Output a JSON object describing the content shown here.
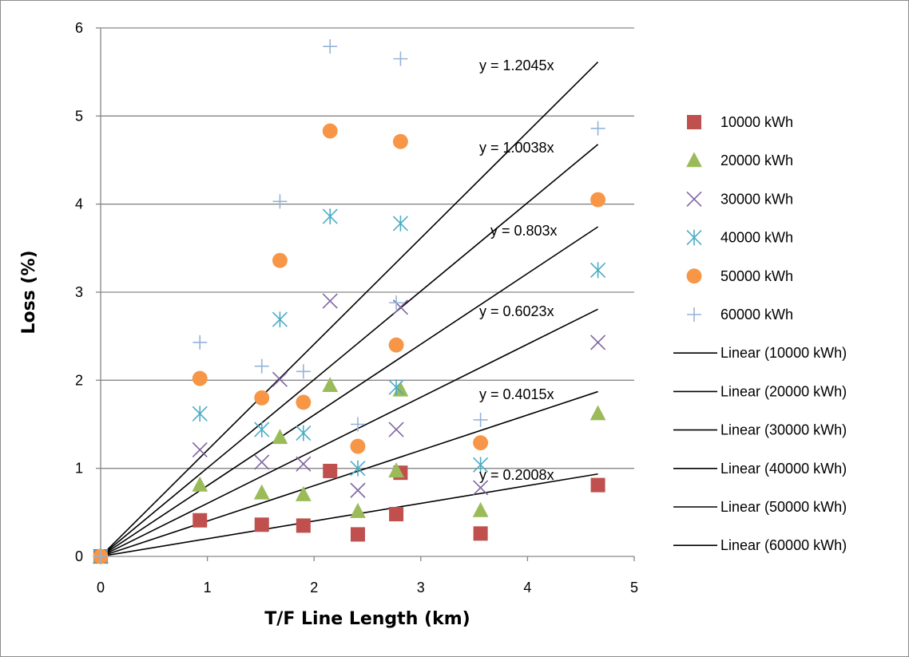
{
  "chart_data": {
    "type": "scatter",
    "xlabel": "T/F Line Length (km)",
    "ylabel": "Loss (%)",
    "xlim": [
      0,
      5
    ],
    "ylim": [
      0,
      6
    ],
    "xticks": [
      "0",
      "1",
      "2",
      "3",
      "4",
      "5"
    ],
    "yticks": [
      "0",
      "1",
      "2",
      "3",
      "4",
      "5",
      "6"
    ],
    "grid": "horizontal",
    "legend_position": "right",
    "series": [
      {
        "name": "10000 kWh",
        "marker": "square",
        "color": "#c0504d",
        "x": [
          0,
          0.93,
          1.51,
          1.9,
          2.15,
          2.41,
          2.77,
          2.81,
          3.56,
          4.66
        ],
        "y": [
          0,
          0.41,
          0.36,
          0.35,
          0.97,
          0.25,
          0.48,
          0.95,
          0.26,
          0.81
        ]
      },
      {
        "name": "20000 kWh",
        "marker": "triangle",
        "color": "#9bbb59",
        "x": [
          0,
          0.93,
          1.51,
          1.68,
          1.9,
          2.15,
          2.41,
          2.77,
          2.81,
          3.56,
          4.66
        ],
        "y": [
          0,
          0.81,
          0.72,
          1.35,
          0.7,
          1.94,
          0.51,
          0.97,
          1.89,
          0.52,
          1.62
        ]
      },
      {
        "name": "30000 kWh",
        "marker": "x",
        "color": "#8064a2",
        "x": [
          0,
          0.93,
          1.51,
          1.68,
          1.9,
          2.15,
          2.41,
          2.77,
          2.81,
          3.56,
          4.66
        ],
        "y": [
          0,
          1.21,
          1.07,
          2.01,
          1.05,
          2.9,
          0.75,
          1.44,
          2.83,
          0.78,
          2.43
        ]
      },
      {
        "name": "40000 kWh",
        "marker": "asterisk",
        "color": "#4bacc6",
        "x": [
          0,
          0.93,
          1.51,
          1.68,
          1.9,
          2.15,
          2.41,
          2.77,
          2.81,
          3.56,
          4.66
        ],
        "y": [
          0,
          1.62,
          1.44,
          2.69,
          1.4,
          3.86,
          1.0,
          1.92,
          3.78,
          1.04,
          3.25
        ]
      },
      {
        "name": "50000 kWh",
        "marker": "circle",
        "color": "#f79646",
        "x": [
          0,
          0.93,
          1.51,
          1.68,
          1.9,
          2.15,
          2.41,
          2.77,
          2.81,
          3.56,
          4.66
        ],
        "y": [
          0,
          2.02,
          1.8,
          3.36,
          1.75,
          4.83,
          1.25,
          2.4,
          4.71,
          1.29,
          4.05
        ]
      },
      {
        "name": "60000 kWh",
        "marker": "plus",
        "color": "#95b3d7",
        "x": [
          0,
          0.93,
          1.51,
          1.68,
          1.9,
          2.15,
          2.41,
          2.77,
          2.81,
          3.56,
          4.66
        ],
        "y": [
          0,
          2.43,
          2.16,
          4.03,
          2.1,
          5.79,
          1.5,
          2.88,
          5.65,
          1.55,
          4.86
        ]
      }
    ],
    "trendlines": [
      {
        "name": "Linear (10000 kWh)",
        "slope": 0.2008,
        "x_end": 4.66,
        "label": "y = 0.2008x"
      },
      {
        "name": "Linear (20000 kWh)",
        "slope": 0.4015,
        "x_end": 4.66,
        "label": "y = 0.4015x"
      },
      {
        "name": "Linear (30000 kWh)",
        "slope": 0.6023,
        "x_end": 4.66,
        "label": "y = 0.6023x"
      },
      {
        "name": "Linear (40000 kWh)",
        "slope": 0.803,
        "x_end": 4.66,
        "label": "y = 0.803x"
      },
      {
        "name": "Linear (50000 kWh)",
        "slope": 1.0038,
        "x_end": 4.66,
        "label": "y = 1.0038x"
      },
      {
        "name": "Linear (60000 kWh)",
        "slope": 1.2045,
        "x_end": 4.66,
        "label": "y = 1.2045x"
      }
    ]
  }
}
